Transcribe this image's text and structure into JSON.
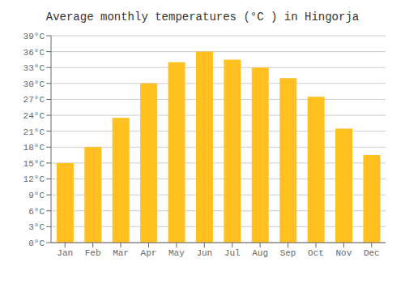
{
  "chart_data": {
    "type": "bar",
    "title": "Average monthly temperatures (°C ) in Hingorja",
    "categories": [
      "Jan",
      "Feb",
      "Mar",
      "Apr",
      "May",
      "Jun",
      "Jul",
      "Aug",
      "Sep",
      "Oct",
      "Nov",
      "Dec"
    ],
    "values": [
      15,
      18,
      23.5,
      30,
      34,
      36,
      34.5,
      33,
      31,
      27.5,
      21.5,
      16.5
    ],
    "color": "#FFC020",
    "ylim": [
      0,
      39
    ],
    "yticks": [
      {
        "value": 0,
        "label": "0°C"
      },
      {
        "value": 3,
        "label": "3°C"
      },
      {
        "value": 6,
        "label": "6°C"
      },
      {
        "value": 9,
        "label": "9°C"
      },
      {
        "value": 12,
        "label": "12°C"
      },
      {
        "value": 15,
        "label": "15°C"
      },
      {
        "value": 18,
        "label": "18°C"
      },
      {
        "value": 21,
        "label": "21°C"
      },
      {
        "value": 24,
        "label": "24°C"
      },
      {
        "value": 27,
        "label": "27°C"
      },
      {
        "value": 30,
        "label": "30°C"
      },
      {
        "value": 33,
        "label": "33°C"
      },
      {
        "value": 36,
        "label": "36°C"
      },
      {
        "value": 39,
        "label": "39°C"
      }
    ],
    "grid": true
  }
}
